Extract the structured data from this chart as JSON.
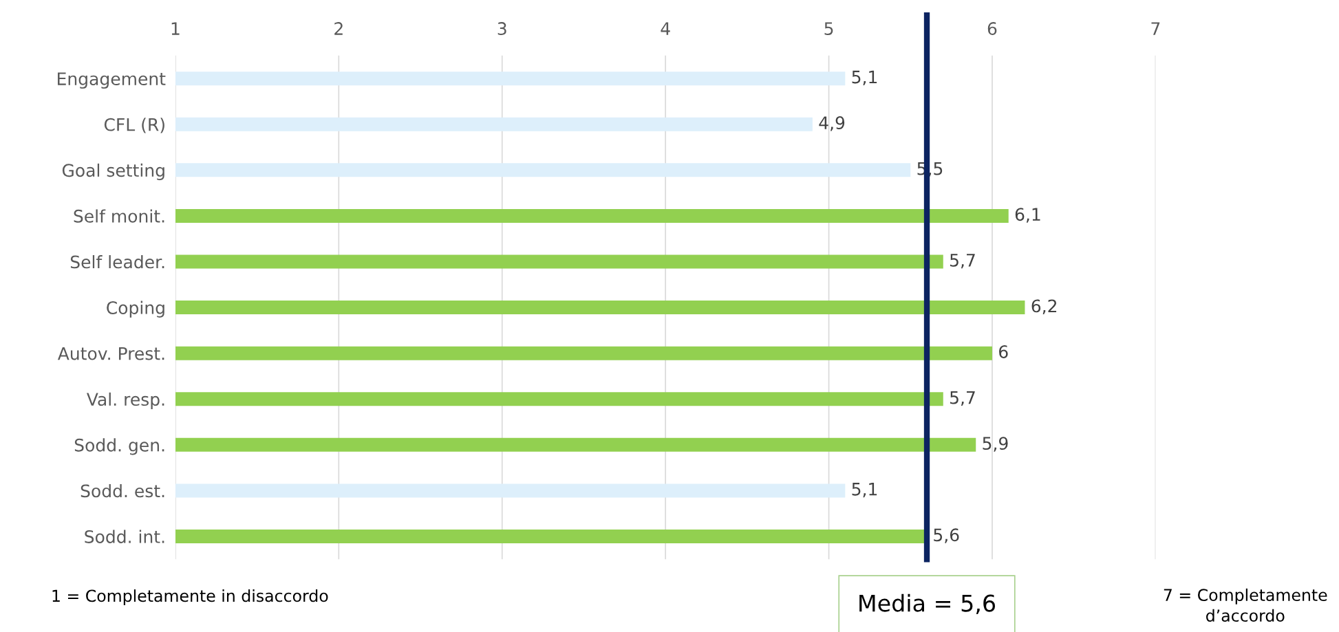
{
  "chart_data": {
    "type": "bar",
    "orientation": "horizontal",
    "categories": [
      "Engagement",
      "CFL (R)",
      "Goal setting",
      "Self monit.",
      "Self leader.",
      "Coping",
      "Autov. Prest.",
      "Val. resp.",
      "Sodd. gen.",
      "Sodd. est.",
      "Sodd. int."
    ],
    "values": [
      5.1,
      4.9,
      5.5,
      6.1,
      5.7,
      6.2,
      6,
      5.7,
      5.9,
      5.1,
      5.6
    ],
    "value_labels": [
      "5,1",
      "4,9",
      "5,5",
      "6,1",
      "5,7",
      "6,2",
      "6",
      "5,7",
      "5,9",
      "5,1",
      "5,6"
    ],
    "colors": [
      "#ddeffb",
      "#ddeffb",
      "#ddeffb",
      "#92d050",
      "#92d050",
      "#92d050",
      "#92d050",
      "#92d050",
      "#92d050",
      "#ddeffb",
      "#92d050"
    ],
    "xlim": [
      1,
      7
    ],
    "xticks": [
      1,
      2,
      3,
      4,
      5,
      6,
      7
    ],
    "grid": "x",
    "ref_lines": [
      {
        "axis": "x",
        "value": 5.6,
        "label": "Media = 5,6",
        "color": "#0c2461"
      }
    ],
    "annotations": [
      "1 = Completamente in disaccordo",
      "7 = Completamente\nd’accordo"
    ]
  }
}
